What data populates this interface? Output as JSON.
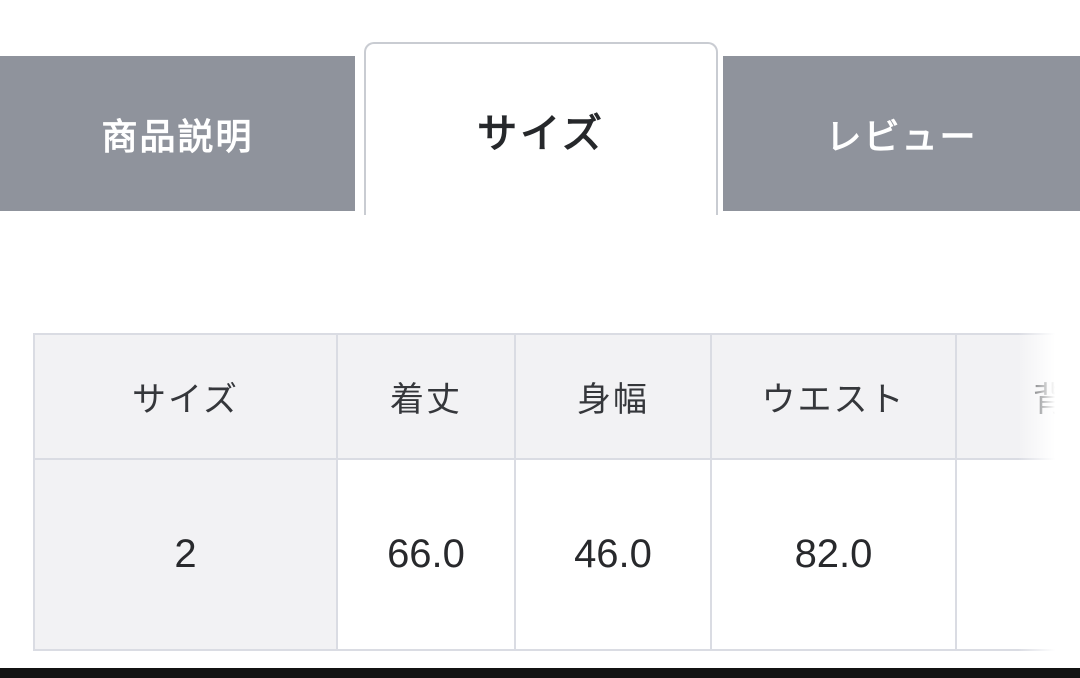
{
  "tab_bar": {
    "tabs": [
      {
        "label": "商品説明"
      },
      {
        "label": "サイズ"
      },
      {
        "label": "レビュー"
      }
    ],
    "active_tab": "サイズ"
  },
  "size_table": {
    "headers": [
      "サイズ",
      "着丈",
      "身幅",
      "ウエスト",
      "背"
    ],
    "rows": [
      [
        "2",
        "66.0",
        "46.0",
        "82.0",
        ""
      ]
    ]
  },
  "colors": {
    "tab_gray": "#8f939c",
    "tab_text": "#ffffff",
    "active_tab_bg": "#ffffff",
    "active_tab_border": "#c9ccd2",
    "active_tab_text": "#26282b",
    "table_border": "#dadce3",
    "table_header_bg": "#f2f2f4",
    "table_text": "#35373b",
    "bottom_bar": "#131313"
  }
}
